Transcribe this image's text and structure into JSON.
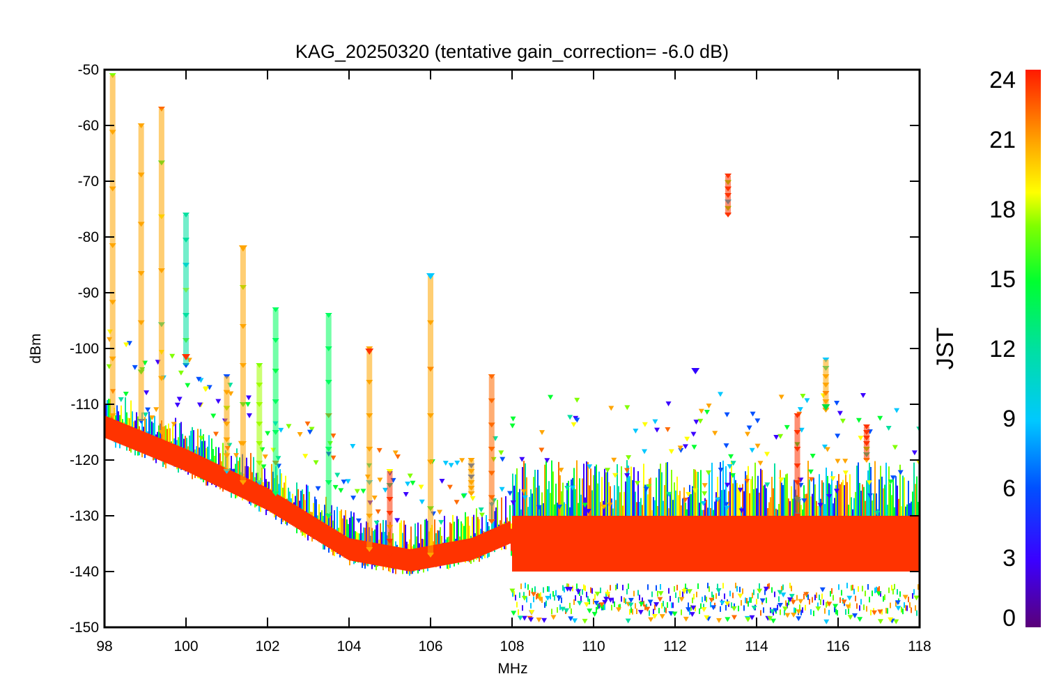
{
  "chart_data": {
    "type": "scatter",
    "title": "KAG_20250320 (tentative gain_correction= -6.0 dB)",
    "xlabel": "MHz",
    "ylabel": "dBm",
    "xlim": [
      98,
      118
    ],
    "ylim": [
      -150,
      -50
    ],
    "x_ticks": [
      "98",
      "100",
      "102",
      "104",
      "106",
      "108",
      "110",
      "112",
      "114",
      "116",
      "118"
    ],
    "y_ticks": [
      "-50",
      "-60",
      "-70",
      "-80",
      "-90",
      "-100",
      "-110",
      "-120",
      "-130",
      "-140",
      "-150"
    ],
    "grid": false,
    "colorbar": {
      "label": "JST",
      "range": [
        0,
        24
      ],
      "ticks": [
        "0",
        "3",
        "6",
        "9",
        "12",
        "15",
        "18",
        "21",
        "24"
      ],
      "colormap": "rainbow"
    },
    "noise_floor_profile": [
      {
        "x": 98.0,
        "y": -114
      },
      {
        "x": 100.0,
        "y": -120
      },
      {
        "x": 102.0,
        "y": -127
      },
      {
        "x": 104.0,
        "y": -136
      },
      {
        "x": 105.5,
        "y": -138
      },
      {
        "x": 107.0,
        "y": -136
      },
      {
        "x": 107.95,
        "y": -133
      },
      {
        "x": 108.0,
        "y": -135
      },
      {
        "x": 118.0,
        "y": -135
      }
    ],
    "signals": [
      {
        "x": 98.2,
        "top": -51,
        "bottom": -112,
        "color": "#ffa500"
      },
      {
        "x": 98.9,
        "top": -60,
        "bottom": -113,
        "color": "#ffa500"
      },
      {
        "x": 99.4,
        "top": -57,
        "bottom": -115,
        "color": "#ffa500"
      },
      {
        "x": 100.0,
        "top": -76,
        "bottom": -103,
        "color": "#00e0a0"
      },
      {
        "x": 101.0,
        "top": -105,
        "bottom": -122,
        "color": "#ffa500"
      },
      {
        "x": 101.4,
        "top": -82,
        "bottom": -124,
        "color": "#ffa500"
      },
      {
        "x": 101.8,
        "top": -103,
        "bottom": -124,
        "color": "#a0ff00"
      },
      {
        "x": 102.2,
        "top": -93,
        "bottom": -126,
        "color": "#00ff60"
      },
      {
        "x": 103.5,
        "top": -94,
        "bottom": -130,
        "color": "#00ff60"
      },
      {
        "x": 104.5,
        "top": -100,
        "bottom": -136,
        "color": "#ffa500"
      },
      {
        "x": 105.0,
        "top": -122,
        "bottom": -137,
        "color": "#ff3300"
      },
      {
        "x": 106.0,
        "top": -87,
        "bottom": -137,
        "color": "#ffa500"
      },
      {
        "x": 107.0,
        "top": -120,
        "bottom": -126,
        "color": "#ffa500"
      },
      {
        "x": 107.5,
        "top": -105,
        "bottom": -131,
        "color": "#ff6a00"
      },
      {
        "x": 113.3,
        "top": -69,
        "bottom": -76,
        "color": "#ff3300"
      },
      {
        "x": 115.0,
        "top": -112,
        "bottom": -130,
        "color": "#ff3300"
      },
      {
        "x": 115.7,
        "top": -102,
        "bottom": -111,
        "color": "#ffa500"
      },
      {
        "x": 116.7,
        "top": -114,
        "bottom": -120,
        "color": "#ff3300"
      }
    ],
    "isolated_points": [
      {
        "x": 100.0,
        "y": -101.5,
        "color": "#ff3300"
      },
      {
        "x": 104.5,
        "y": -100.5,
        "color": "#ff3300"
      },
      {
        "x": 101.4,
        "y": -82,
        "color": "#ffa500"
      },
      {
        "x": 106.0,
        "y": -87,
        "color": "#00c8ff"
      },
      {
        "x": 112.5,
        "y": -104,
        "color": "#3000ff"
      },
      {
        "x": 115.7,
        "y": -110.5,
        "color": "#00e040"
      }
    ]
  }
}
